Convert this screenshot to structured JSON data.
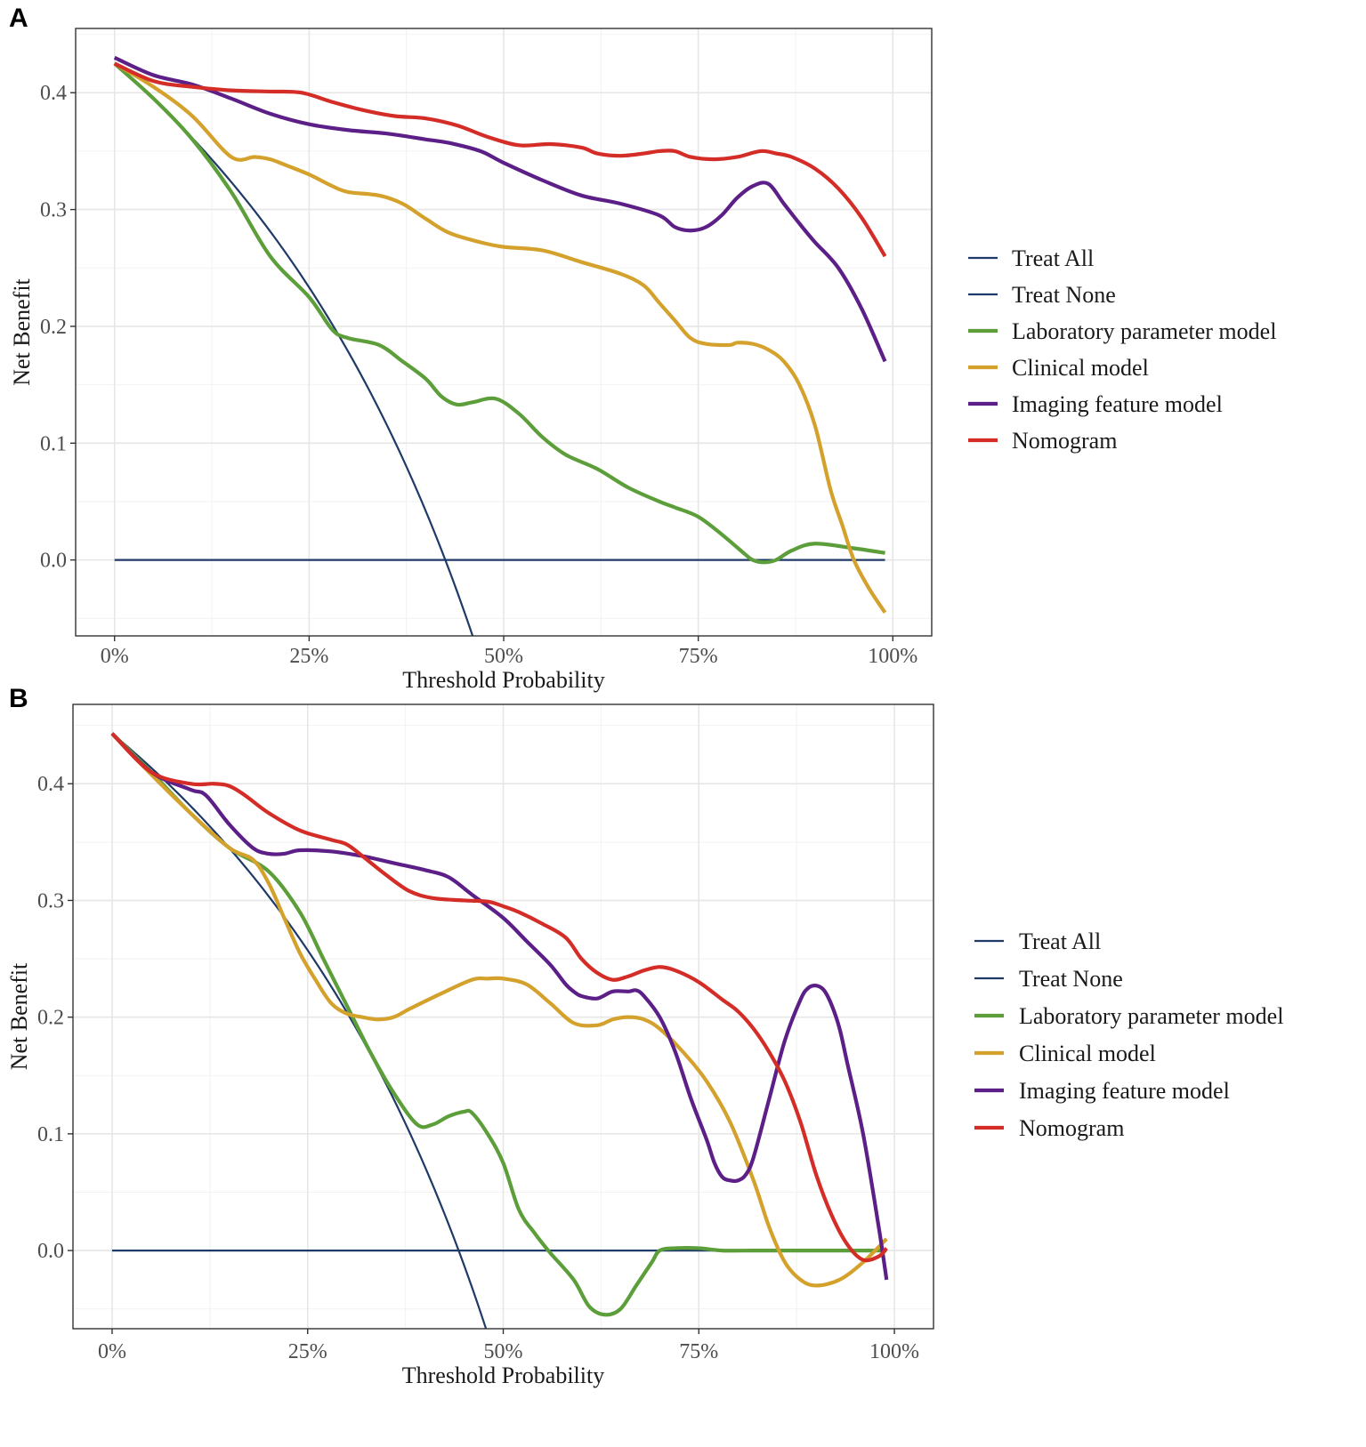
{
  "chart_data": [
    {
      "type": "line",
      "panel_label": "A",
      "title": "",
      "xlabel": "Threshold Probability",
      "ylabel": "Net Benefit",
      "xlim": [
        -0.05,
        1.05
      ],
      "ylim": [
        -0.065,
        0.455
      ],
      "x_ticks": [
        0,
        0.25,
        0.5,
        0.75,
        1.0
      ],
      "x_tick_labels": [
        "0%",
        "25%",
        "50%",
        "75%",
        "100%"
      ],
      "y_ticks": [
        0.0,
        0.1,
        0.2,
        0.3,
        0.4
      ],
      "y_tick_labels": [
        "0.0",
        "0.1",
        "0.2",
        "0.3",
        "0.4"
      ],
      "grid": true,
      "legend_position": "right",
      "prevalence": 0.425,
      "series": [
        {
          "name": "Treat All",
          "color": "#1f3a68",
          "kind": "treat_all"
        },
        {
          "name": "Treat None",
          "color": "#1f3a68",
          "kind": "treat_none",
          "x": [
            0,
            0.99
          ],
          "values": [
            0,
            0
          ]
        },
        {
          "name": "Laboratory parameter model",
          "color": "#5c9e3a",
          "kind": "model",
          "x": [
            0,
            0.05,
            0.1,
            0.15,
            0.2,
            0.25,
            0.28,
            0.3,
            0.34,
            0.37,
            0.4,
            0.42,
            0.44,
            0.46,
            0.49,
            0.52,
            0.55,
            0.58,
            0.62,
            0.66,
            0.7,
            0.72,
            0.75,
            0.78,
            0.81,
            0.82,
            0.835,
            0.85,
            0.87,
            0.9,
            0.95,
            0.99
          ],
          "values": [
            0.425,
            0.395,
            0.36,
            0.315,
            0.26,
            0.225,
            0.197,
            0.19,
            0.184,
            0.17,
            0.155,
            0.14,
            0.133,
            0.135,
            0.138,
            0.125,
            0.105,
            0.09,
            0.078,
            0.062,
            0.05,
            0.045,
            0.037,
            0.022,
            0.005,
            0.0,
            -0.002,
            0.0,
            0.008,
            0.014,
            0.01,
            0.006
          ]
        },
        {
          "name": "Clinical model",
          "color": "#d4a22c",
          "kind": "model",
          "x": [
            0,
            0.05,
            0.1,
            0.15,
            0.18,
            0.2,
            0.22,
            0.25,
            0.28,
            0.3,
            0.34,
            0.37,
            0.4,
            0.43,
            0.47,
            0.5,
            0.55,
            0.6,
            0.65,
            0.68,
            0.7,
            0.72,
            0.74,
            0.76,
            0.79,
            0.8,
            0.82,
            0.84,
            0.86,
            0.88,
            0.9,
            0.92,
            0.935,
            0.95,
            0.97,
            0.99
          ],
          "values": [
            0.425,
            0.405,
            0.38,
            0.345,
            0.345,
            0.343,
            0.338,
            0.33,
            0.32,
            0.315,
            0.312,
            0.305,
            0.292,
            0.28,
            0.272,
            0.268,
            0.265,
            0.255,
            0.245,
            0.235,
            0.22,
            0.205,
            0.19,
            0.185,
            0.184,
            0.186,
            0.185,
            0.18,
            0.17,
            0.15,
            0.115,
            0.06,
            0.03,
            0.0,
            -0.025,
            -0.045
          ]
        },
        {
          "name": "Imaging feature model",
          "color": "#5b1f87",
          "kind": "model",
          "x": [
            0,
            0.05,
            0.1,
            0.15,
            0.2,
            0.25,
            0.3,
            0.35,
            0.4,
            0.43,
            0.47,
            0.5,
            0.55,
            0.6,
            0.65,
            0.7,
            0.72,
            0.74,
            0.76,
            0.78,
            0.8,
            0.82,
            0.84,
            0.86,
            0.88,
            0.9,
            0.93,
            0.96,
            0.99
          ],
          "values": [
            0.43,
            0.415,
            0.407,
            0.395,
            0.382,
            0.373,
            0.368,
            0.365,
            0.36,
            0.357,
            0.35,
            0.34,
            0.325,
            0.312,
            0.305,
            0.295,
            0.285,
            0.282,
            0.285,
            0.295,
            0.31,
            0.32,
            0.322,
            0.305,
            0.288,
            0.272,
            0.25,
            0.215,
            0.17
          ]
        },
        {
          "name": "Nomogram",
          "color": "#d42c27",
          "kind": "model",
          "x": [
            0,
            0.05,
            0.1,
            0.15,
            0.2,
            0.24,
            0.28,
            0.32,
            0.36,
            0.4,
            0.44,
            0.48,
            0.52,
            0.56,
            0.6,
            0.62,
            0.65,
            0.68,
            0.7,
            0.72,
            0.74,
            0.77,
            0.8,
            0.83,
            0.85,
            0.87,
            0.9,
            0.93,
            0.96,
            0.99
          ],
          "values": [
            0.425,
            0.41,
            0.405,
            0.402,
            0.401,
            0.4,
            0.392,
            0.385,
            0.38,
            0.378,
            0.372,
            0.362,
            0.355,
            0.356,
            0.353,
            0.348,
            0.346,
            0.348,
            0.35,
            0.35,
            0.345,
            0.343,
            0.345,
            0.35,
            0.348,
            0.345,
            0.335,
            0.318,
            0.293,
            0.26
          ]
        }
      ]
    },
    {
      "type": "line",
      "panel_label": "B",
      "title": "",
      "xlabel": "Threshold Probability",
      "ylabel": "Net Benefit",
      "xlim": [
        -0.05,
        1.05
      ],
      "ylim": [
        -0.067,
        0.468
      ],
      "x_ticks": [
        0,
        0.25,
        0.5,
        0.75,
        1.0
      ],
      "x_tick_labels": [
        "0%",
        "25%",
        "50%",
        "75%",
        "100%"
      ],
      "y_ticks": [
        0.0,
        0.1,
        0.2,
        0.3,
        0.4
      ],
      "y_tick_labels": [
        "0.0",
        "0.1",
        "0.2",
        "0.3",
        "0.4"
      ],
      "grid": true,
      "legend_position": "right",
      "prevalence": 0.443,
      "series": [
        {
          "name": "Treat All",
          "color": "#1f3a68",
          "kind": "treat_all"
        },
        {
          "name": "Treat None",
          "color": "#1f3a68",
          "kind": "treat_none",
          "x": [
            0,
            0.99
          ],
          "values": [
            0,
            0
          ]
        },
        {
          "name": "Laboratory parameter model",
          "color": "#5c9e3a",
          "kind": "model",
          "x": [
            0,
            0.05,
            0.1,
            0.15,
            0.2,
            0.24,
            0.27,
            0.3,
            0.33,
            0.36,
            0.39,
            0.41,
            0.43,
            0.45,
            0.46,
            0.48,
            0.5,
            0.52,
            0.54,
            0.56,
            0.59,
            0.61,
            0.63,
            0.65,
            0.67,
            0.69,
            0.7,
            0.72,
            0.75,
            0.78,
            0.82,
            0.86,
            0.9,
            0.95,
            0.99
          ],
          "values": [
            0.443,
            0.41,
            0.375,
            0.345,
            0.325,
            0.29,
            0.25,
            0.21,
            0.17,
            0.135,
            0.108,
            0.108,
            0.115,
            0.119,
            0.118,
            0.1,
            0.075,
            0.035,
            0.015,
            -0.002,
            -0.025,
            -0.048,
            -0.055,
            -0.05,
            -0.03,
            -0.01,
            0.0,
            0.002,
            0.002,
            0.0,
            0.0,
            0.0,
            0.0,
            0.0,
            0.0
          ]
        },
        {
          "name": "Clinical model",
          "color": "#d4a22c",
          "kind": "model",
          "x": [
            0,
            0.05,
            0.1,
            0.15,
            0.18,
            0.2,
            0.22,
            0.24,
            0.26,
            0.28,
            0.3,
            0.32,
            0.34,
            0.36,
            0.38,
            0.42,
            0.46,
            0.48,
            0.5,
            0.53,
            0.56,
            0.59,
            0.62,
            0.64,
            0.66,
            0.68,
            0.7,
            0.73,
            0.76,
            0.79,
            0.82,
            0.84,
            0.86,
            0.88,
            0.9,
            0.93,
            0.96,
            0.99
          ],
          "values": [
            0.443,
            0.408,
            0.375,
            0.345,
            0.335,
            0.315,
            0.285,
            0.255,
            0.232,
            0.212,
            0.203,
            0.2,
            0.198,
            0.2,
            0.207,
            0.22,
            0.232,
            0.233,
            0.233,
            0.228,
            0.212,
            0.195,
            0.193,
            0.198,
            0.2,
            0.198,
            0.19,
            0.17,
            0.145,
            0.11,
            0.06,
            0.02,
            -0.01,
            -0.025,
            -0.03,
            -0.025,
            -0.01,
            0.01
          ]
        },
        {
          "name": "Imaging feature model",
          "color": "#5b1f87",
          "kind": "model",
          "x": [
            0,
            0.05,
            0.1,
            0.12,
            0.15,
            0.18,
            0.2,
            0.22,
            0.24,
            0.28,
            0.32,
            0.36,
            0.4,
            0.43,
            0.46,
            0.5,
            0.53,
            0.56,
            0.58,
            0.59,
            0.6,
            0.62,
            0.64,
            0.66,
            0.67,
            0.68,
            0.7,
            0.72,
            0.74,
            0.76,
            0.77,
            0.78,
            0.79,
            0.8,
            0.81,
            0.82,
            0.84,
            0.86,
            0.88,
            0.89,
            0.9,
            0.91,
            0.92,
            0.93,
            0.94,
            0.96,
            0.98,
            0.99
          ],
          "values": [
            0.443,
            0.41,
            0.395,
            0.39,
            0.365,
            0.345,
            0.34,
            0.34,
            0.343,
            0.342,
            0.338,
            0.332,
            0.326,
            0.32,
            0.305,
            0.285,
            0.265,
            0.245,
            0.228,
            0.222,
            0.218,
            0.216,
            0.222,
            0.222,
            0.223,
            0.218,
            0.2,
            0.17,
            0.13,
            0.095,
            0.075,
            0.063,
            0.06,
            0.06,
            0.065,
            0.08,
            0.13,
            0.18,
            0.215,
            0.225,
            0.227,
            0.223,
            0.21,
            0.19,
            0.16,
            0.1,
            0.02,
            -0.025
          ]
        },
        {
          "name": "Nomogram",
          "color": "#d42c27",
          "kind": "model",
          "x": [
            0,
            0.05,
            0.1,
            0.13,
            0.15,
            0.17,
            0.2,
            0.24,
            0.28,
            0.3,
            0.32,
            0.35,
            0.38,
            0.41,
            0.45,
            0.48,
            0.5,
            0.52,
            0.55,
            0.58,
            0.6,
            0.62,
            0.64,
            0.66,
            0.68,
            0.7,
            0.72,
            0.75,
            0.78,
            0.8,
            0.82,
            0.84,
            0.86,
            0.88,
            0.9,
            0.92,
            0.94,
            0.96,
            0.98,
            0.99
          ],
          "values": [
            0.443,
            0.41,
            0.4,
            0.4,
            0.398,
            0.39,
            0.375,
            0.36,
            0.352,
            0.348,
            0.338,
            0.322,
            0.308,
            0.302,
            0.3,
            0.299,
            0.295,
            0.29,
            0.28,
            0.268,
            0.25,
            0.238,
            0.232,
            0.235,
            0.24,
            0.243,
            0.24,
            0.23,
            0.215,
            0.205,
            0.19,
            0.17,
            0.145,
            0.11,
            0.065,
            0.03,
            0.005,
            -0.008,
            -0.005,
            0.002
          ]
        }
      ]
    }
  ]
}
